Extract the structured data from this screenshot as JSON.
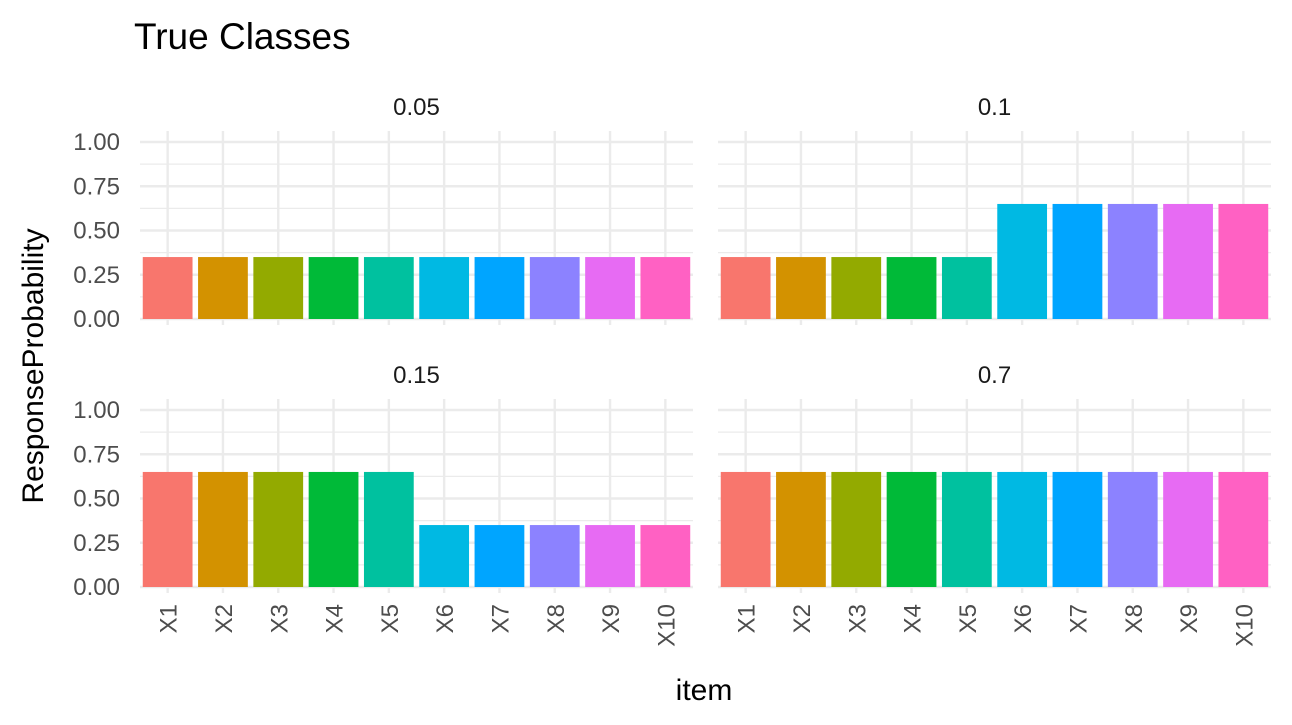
{
  "chart_data": {
    "type": "bar",
    "title": "True Classes",
    "xlabel": "item",
    "ylabel": "ResponseProbability",
    "ylim": [
      0,
      1
    ],
    "y_ticks": [
      "0.00",
      "0.25",
      "0.50",
      "0.75",
      "1.00"
    ],
    "y_tick_values": [
      0,
      0.25,
      0.5,
      0.75,
      1.0
    ],
    "categories": [
      "X1",
      "X2",
      "X3",
      "X4",
      "X5",
      "X6",
      "X7",
      "X8",
      "X9",
      "X10"
    ],
    "colors": [
      "#F8766D",
      "#D39200",
      "#93AA00",
      "#00BA38",
      "#00C19F",
      "#00B9E3",
      "#00A5FF",
      "#8C82FF",
      "#E76BF3",
      "#FF61C3"
    ],
    "grid": true,
    "legend": "none",
    "panels": [
      {
        "label": "0.05",
        "values": [
          0.35,
          0.35,
          0.35,
          0.35,
          0.35,
          0.35,
          0.35,
          0.35,
          0.35,
          0.35
        ]
      },
      {
        "label": "0.1",
        "values": [
          0.35,
          0.35,
          0.35,
          0.35,
          0.35,
          0.65,
          0.65,
          0.65,
          0.65,
          0.65
        ]
      },
      {
        "label": "0.15",
        "values": [
          0.65,
          0.65,
          0.65,
          0.65,
          0.65,
          0.35,
          0.35,
          0.35,
          0.35,
          0.35
        ]
      },
      {
        "label": "0.7",
        "values": [
          0.65,
          0.65,
          0.65,
          0.65,
          0.65,
          0.65,
          0.65,
          0.65,
          0.65,
          0.65
        ]
      }
    ]
  }
}
